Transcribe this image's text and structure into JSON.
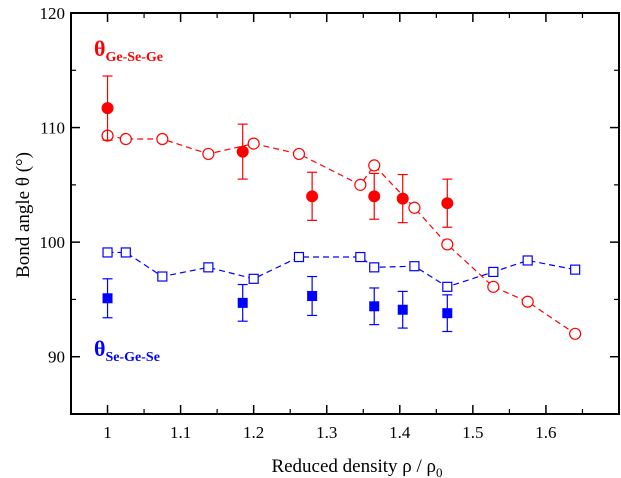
{
  "chart_data": {
    "type": "scatter",
    "title": "",
    "xlabel": {
      "main": "Reduced density ρ / ρ",
      "sub": "0"
    },
    "ylabel": "Bond angle θ  (°)",
    "xlim": [
      0.95,
      1.7
    ],
    "ylim": [
      85,
      120
    ],
    "xticks": [
      1,
      1.1,
      1.2,
      1.3,
      1.4,
      1.5,
      1.6
    ],
    "xtick_labels": [
      "1",
      "1.1",
      "1.2",
      "1.3",
      "1.4",
      "1.5",
      "1.6"
    ],
    "yticks": [
      90,
      100,
      110,
      120
    ],
    "ytick_labels": [
      "90",
      "100",
      "110",
      "120"
    ],
    "y_minor_ticks": [
      85,
      95,
      105,
      115
    ],
    "grid": false,
    "series": [
      {
        "name_main": "θ",
        "name_sub": "Ge-Se-Ge",
        "color": "#ff0000",
        "marker": "circle-open",
        "line": "dashed",
        "x": [
          1.0,
          1.025,
          1.075,
          1.138,
          1.2,
          1.262,
          1.346,
          1.365,
          1.42,
          1.465,
          1.528,
          1.575,
          1.64
        ],
        "y": [
          109.3,
          109.0,
          109.0,
          107.7,
          108.6,
          107.7,
          105.0,
          106.7,
          103.0,
          99.8,
          96.1,
          94.8,
          92.0
        ]
      },
      {
        "name_main": "θ",
        "name_sub": "Se-Ge-Se",
        "color": "#0000ff",
        "marker": "square-open",
        "line": "dashed",
        "x": [
          1.0,
          1.025,
          1.075,
          1.138,
          1.2,
          1.262,
          1.346,
          1.365,
          1.42,
          1.465,
          1.528,
          1.575,
          1.64
        ],
        "y": [
          99.1,
          99.1,
          97.0,
          97.8,
          96.8,
          98.7,
          98.7,
          97.8,
          97.9,
          96.1,
          97.4,
          98.4,
          97.6
        ]
      },
      {
        "name": "",
        "color": "#ff0000",
        "marker": "circle-filled",
        "line": "none",
        "x": [
          1.0,
          1.185,
          1.28,
          1.365,
          1.404,
          1.465
        ],
        "y": [
          111.7,
          107.9,
          104.0,
          104.0,
          103.8,
          103.4
        ],
        "err": [
          2.8,
          2.4,
          2.1,
          2.0,
          2.1,
          2.1
        ]
      },
      {
        "name": "",
        "color": "#0000ff",
        "marker": "square-filled",
        "line": "none",
        "x": [
          1.0,
          1.185,
          1.28,
          1.365,
          1.404,
          1.465
        ],
        "y": [
          95.1,
          94.7,
          95.3,
          94.4,
          94.1,
          93.8
        ],
        "err": [
          1.7,
          1.6,
          1.7,
          1.6,
          1.6,
          1.6
        ]
      }
    ]
  }
}
